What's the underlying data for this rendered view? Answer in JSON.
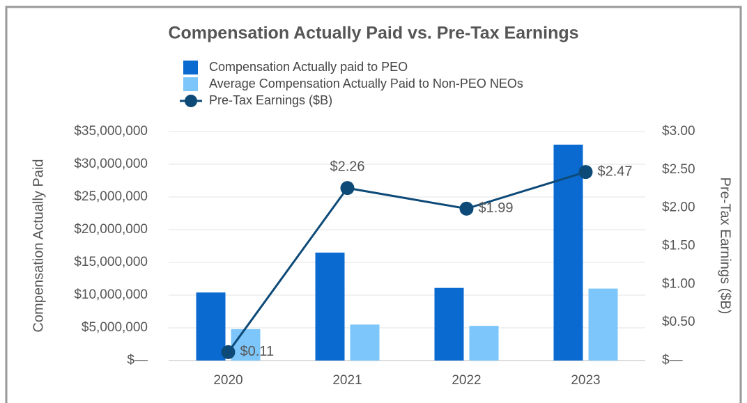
{
  "chart_data": {
    "type": "bar",
    "title": "Compensation Actually Paid vs. Pre-Tax Earnings",
    "y_label": "Compensation Actually Paid",
    "y2_label": "Pre-Tax Earnings ($B)",
    "categories": [
      "2020",
      "2021",
      "2022",
      "2023"
    ],
    "series": [
      {
        "name": "Compensation Actually paid to PEO",
        "type": "bar",
        "color": "#0a6ad0",
        "values": [
          10400000,
          16500000,
          11100000,
          33000000
        ]
      },
      {
        "name": "Average Compensation Actually Paid to Non-PEO NEOs",
        "type": "bar",
        "color": "#7dc6fb",
        "values": [
          4800000,
          5500000,
          5300000,
          11000000
        ]
      },
      {
        "name": "Pre-Tax Earnings ($B)",
        "type": "line",
        "axis": "y2",
        "color": "#0d4a78",
        "values": [
          0.11,
          2.26,
          1.99,
          2.47
        ],
        "value_labels": [
          "$0.11",
          "$2.26",
          "$1.99",
          "$2.47"
        ]
      }
    ],
    "ylim": [
      0,
      35000000
    ],
    "yticks": [
      {
        "value": 0,
        "label": "$—"
      },
      {
        "value": 5000000,
        "label": "$5,000,000"
      },
      {
        "value": 10000000,
        "label": "$10,000,000"
      },
      {
        "value": 15000000,
        "label": "$15,000,000"
      },
      {
        "value": 20000000,
        "label": "$20,000,000"
      },
      {
        "value": 25000000,
        "label": "$25,000,000"
      },
      {
        "value": 30000000,
        "label": "$30,000,000"
      },
      {
        "value": 35000000,
        "label": "$35,000,000"
      }
    ],
    "y2lim": [
      0,
      3
    ],
    "y2ticks": [
      {
        "value": 0,
        "label": "$—"
      },
      {
        "value": 0.5,
        "label": "$0.50"
      },
      {
        "value": 1,
        "label": "$1.00"
      },
      {
        "value": 1.5,
        "label": "$1.50"
      },
      {
        "value": 2,
        "label": "$2.00"
      },
      {
        "value": 2.5,
        "label": "$2.50"
      },
      {
        "value": 3,
        "label": "$3.00"
      }
    ],
    "grid": true
  }
}
